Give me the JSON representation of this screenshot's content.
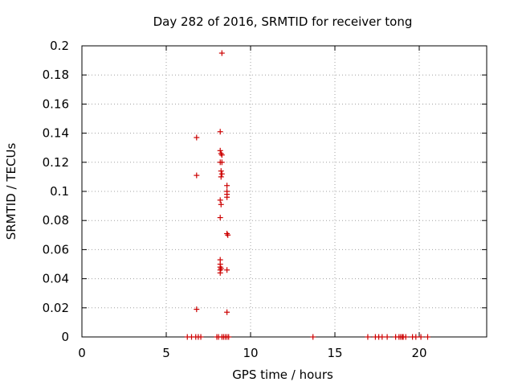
{
  "chart_data": {
    "type": "scatter",
    "title": "Day 282 of 2016, SRMTID for receiver tong",
    "xlabel": "GPS time / hours",
    "ylabel": "SRMTID / TECUs",
    "xlim": [
      0,
      24
    ],
    "ylim": [
      0,
      0.2
    ],
    "x_ticks": [
      0,
      5,
      10,
      15,
      20
    ],
    "x_tick_labels": [
      "0",
      "5",
      "10",
      "15",
      "20"
    ],
    "y_ticks": [
      0,
      0.02,
      0.04,
      0.06,
      0.08,
      0.1,
      0.12,
      0.14,
      0.16,
      0.18,
      0.2
    ],
    "y_tick_labels": [
      "0",
      "0.02",
      "0.04",
      "0.06",
      "0.08",
      "0.1",
      "0.12",
      "0.14",
      "0.16",
      "0.18",
      "0.2"
    ],
    "grid": true,
    "marker": "+",
    "color": "#cc0000",
    "series": [
      {
        "name": "SRMTID",
        "x": [
          8.3,
          8.2,
          6.8,
          8.2,
          8.25,
          8.3,
          8.2,
          8.3,
          8.25,
          8.3,
          6.8,
          8.25,
          8.6,
          8.6,
          8.6,
          8.6,
          8.2,
          8.25,
          8.2,
          8.2,
          8.6,
          8.65,
          8.2,
          8.2,
          8.25,
          8.2,
          8.6,
          8.2,
          6.8,
          8.6,
          6.25,
          6.5,
          6.75,
          6.9,
          7.05,
          8.0,
          8.1,
          8.3,
          8.4,
          8.5,
          8.6,
          8.7,
          13.7,
          16.95,
          17.4,
          17.6,
          17.8,
          18.1,
          18.6,
          18.8,
          18.9,
          19.0,
          19.05,
          19.2,
          19.6,
          19.8,
          20.1,
          20.5
        ],
        "y": [
          0.195,
          0.141,
          0.137,
          0.128,
          0.126,
          0.125,
          0.12,
          0.12,
          0.114,
          0.112,
          0.111,
          0.11,
          0.104,
          0.1,
          0.098,
          0.096,
          0.094,
          0.091,
          0.082,
          0.053,
          0.071,
          0.07,
          0.05,
          0.048,
          0.047,
          0.044,
          0.046,
          0.046,
          0.019,
          0.017,
          0,
          0,
          0,
          0,
          0,
          0,
          0,
          0,
          0,
          0,
          0,
          0,
          0,
          0,
          0,
          0,
          0,
          0,
          0,
          0,
          0,
          0,
          0,
          0,
          0,
          0,
          0,
          0
        ]
      }
    ]
  }
}
